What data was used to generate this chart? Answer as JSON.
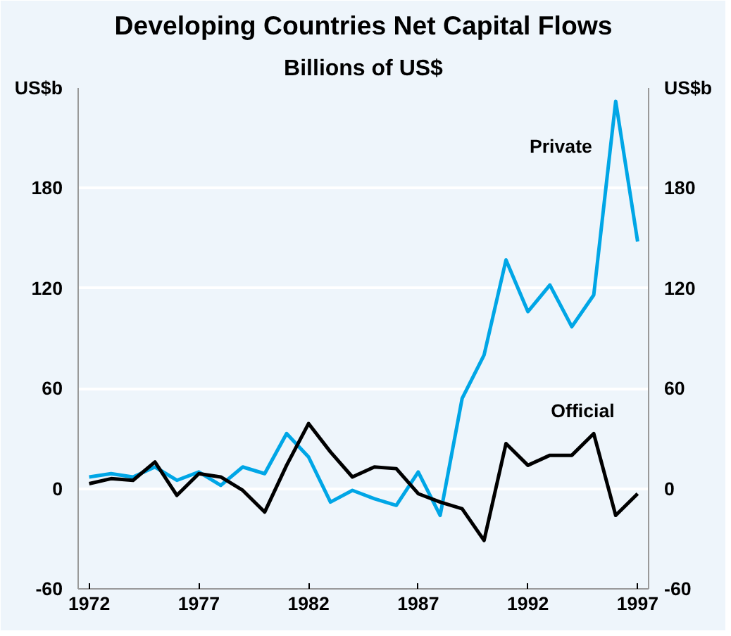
{
  "chart_data": {
    "type": "line",
    "title": "Developing Countries Net Capital Flows",
    "subtitle": "Billions of US$",
    "ylabel": "US$b",
    "y2label": "US$b",
    "x": [
      1972,
      1973,
      1974,
      1975,
      1976,
      1977,
      1978,
      1979,
      1980,
      1981,
      1982,
      1983,
      1984,
      1985,
      1986,
      1987,
      1988,
      1989,
      1990,
      1991,
      1992,
      1993,
      1994,
      1995,
      1996,
      1997
    ],
    "series": [
      {
        "name": "Private",
        "color": "#00a6e6",
        "values": [
          7,
          9,
          7,
          13,
          5,
          10,
          2,
          13,
          9,
          33,
          19,
          -8,
          -1,
          -6,
          -10,
          10,
          -16,
          54,
          80,
          137,
          106,
          122,
          97,
          116,
          232,
          148
        ]
      },
      {
        "name": "Official",
        "color": "#000000",
        "values": [
          3,
          6,
          5,
          16,
          -4,
          9,
          7,
          -1,
          -14,
          14,
          39,
          22,
          7,
          13,
          12,
          -3,
          -8,
          -12,
          -31,
          27,
          14,
          20,
          20,
          33,
          -16,
          -3
        ]
      }
    ],
    "xlim": [
      1971.5,
      1997.5
    ],
    "xticks": [
      1972,
      1977,
      1982,
      1987,
      1992,
      1997
    ],
    "ylim": [
      -60,
      240
    ],
    "yticks": [
      -60,
      0,
      60,
      120,
      180
    ],
    "y2lim": [
      -60,
      240
    ],
    "y2ticks": [
      -60,
      0,
      60,
      120,
      180
    ],
    "grid": "y",
    "legend": false,
    "line_style": "solid",
    "marker": "none"
  }
}
